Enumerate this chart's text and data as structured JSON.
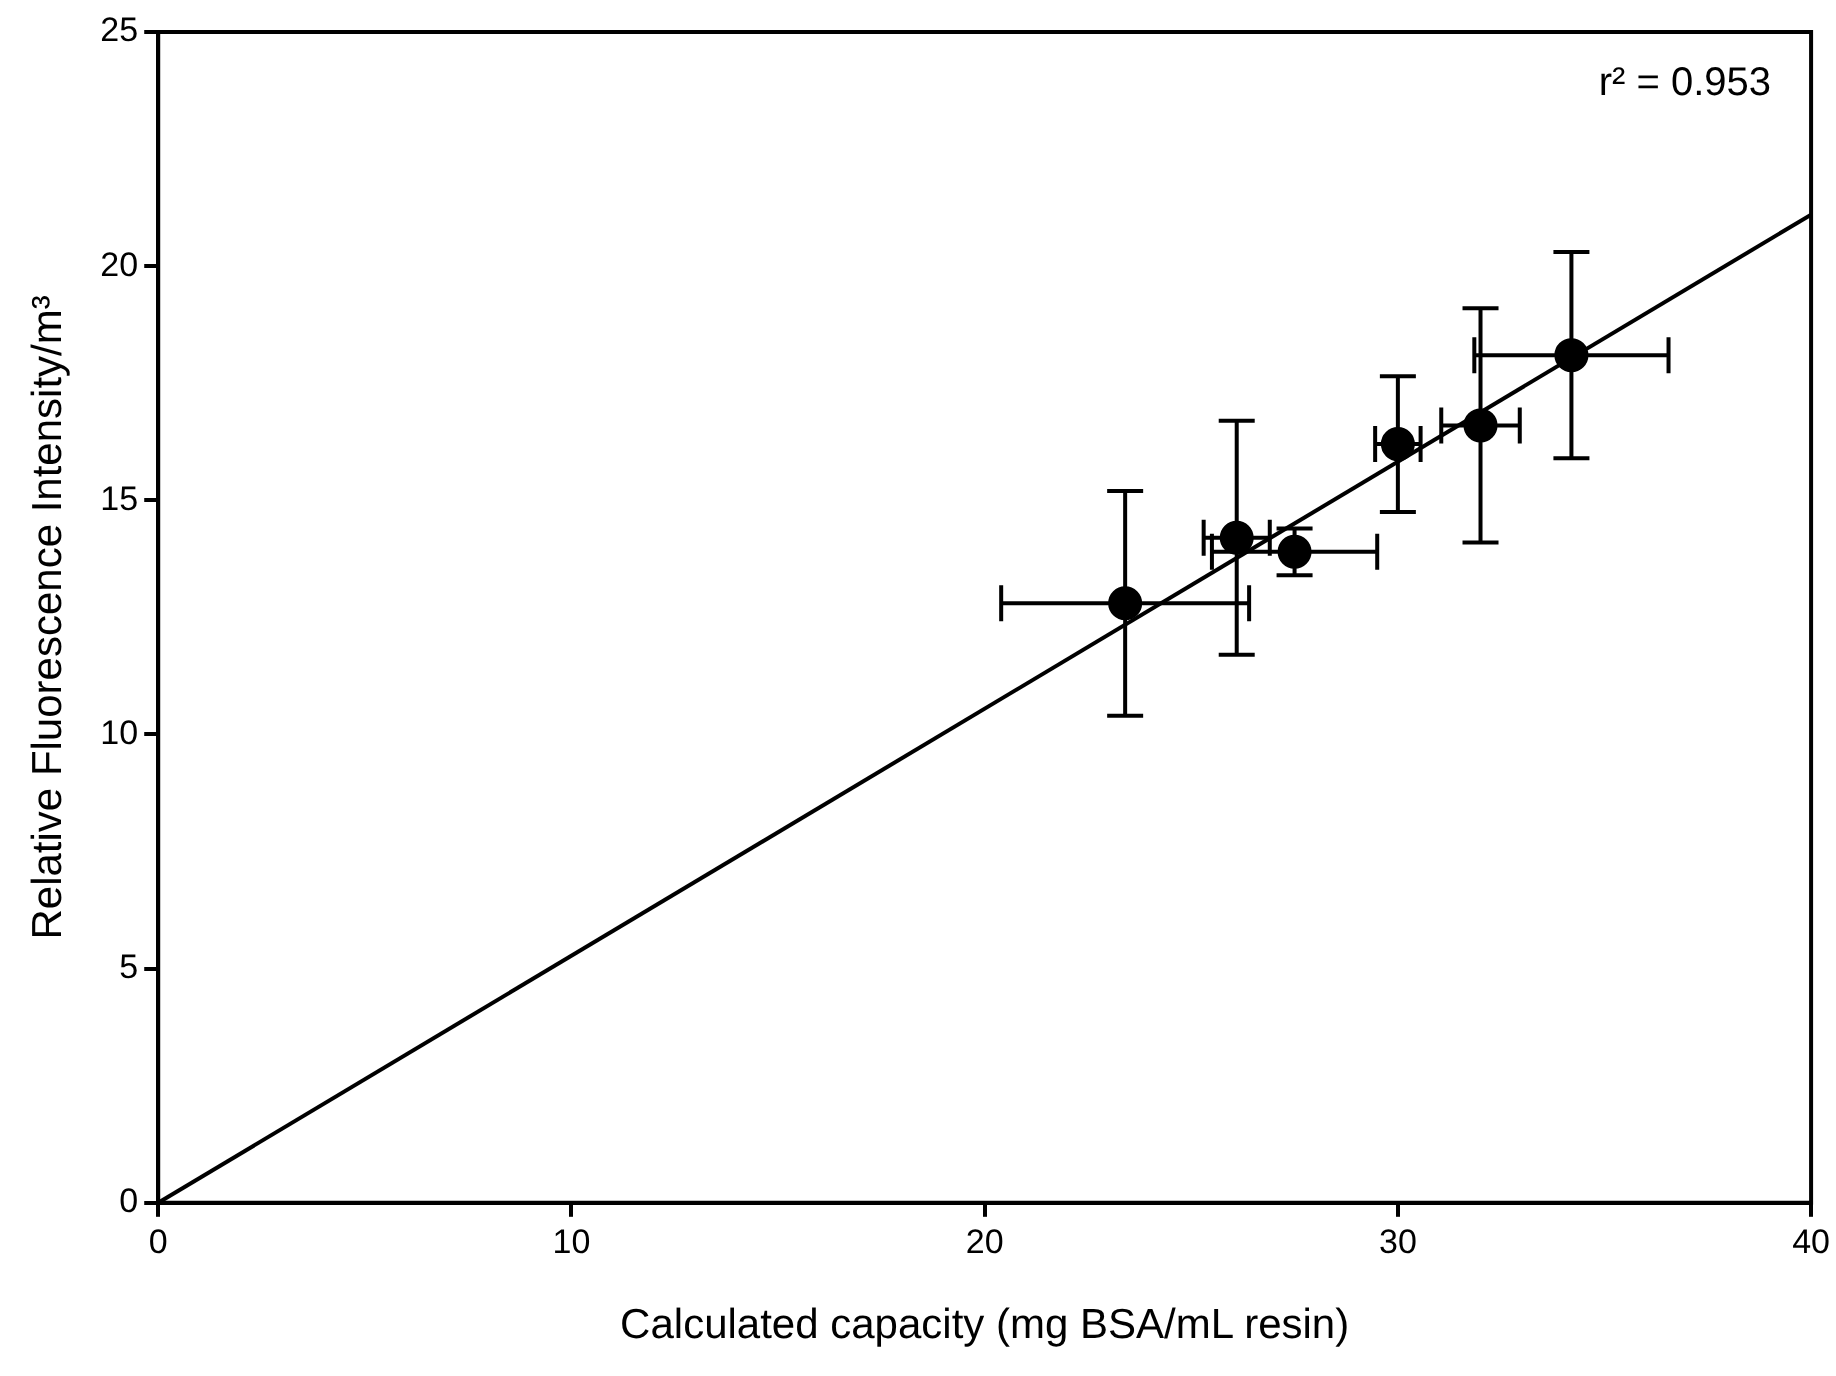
{
  "chart_data": {
    "type": "scatter",
    "xlabel": "Calculated capacity (mg BSA/mL resin)",
    "ylabel": "Relative Fluorescence Intensity/m³",
    "xlim": [
      0,
      40
    ],
    "xticks": [
      0,
      10,
      20,
      30,
      40
    ],
    "ylim": [
      0,
      25
    ],
    "yticks": [
      0,
      5,
      10,
      15,
      20,
      25
    ],
    "grid": false,
    "legend": false,
    "marker": "circle",
    "annotations": [
      "r² = 0.953"
    ],
    "series": [
      {
        "color": "#000000",
        "x": [
          23.4,
          26.1,
          27.5,
          30.0,
          32.0,
          34.2
        ],
        "values": [
          12.8,
          14.2,
          13.9,
          16.2,
          16.6,
          18.1
        ],
        "errors": [
          2.4,
          2.5,
          0.5,
          1.45,
          2.5,
          2.2
        ],
        "xerrors": [
          3.0,
          0.8,
          2.0,
          0.55,
          0.95,
          2.35
        ]
      },
      {
        "type": "line",
        "color": "#000000",
        "x": [
          0,
          40
        ],
        "values": [
          0,
          21.1
        ],
        "marker": "none",
        "line_style": "solid"
      }
    ]
  }
}
